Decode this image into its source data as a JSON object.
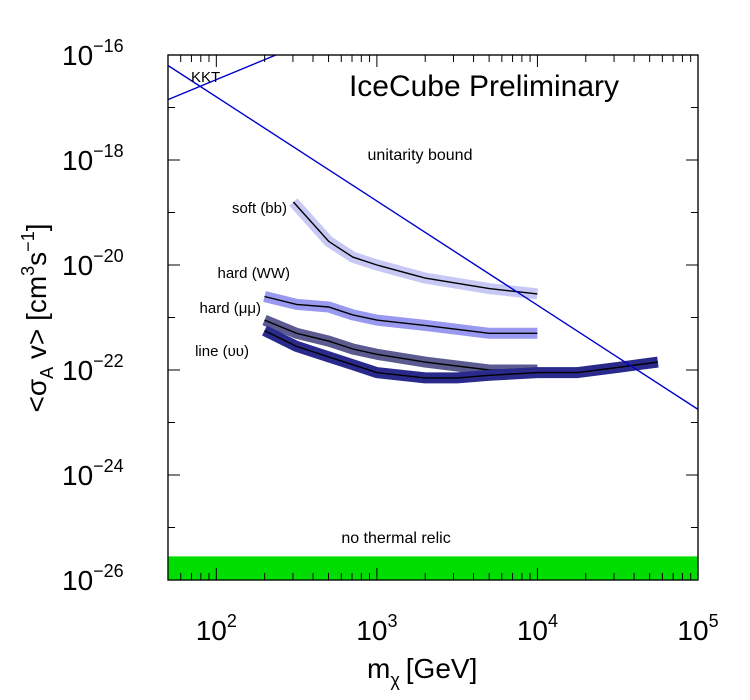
{
  "chart_data": {
    "type": "line",
    "title": "IceCube Preliminary",
    "xlabel_main": "m",
    "xlabel_sub": "χ",
    "xlabel_unit": "[GeV]",
    "ylabel_prefix": "<σ",
    "ylabel_sub": "A",
    "ylabel_mid": " v> [cm",
    "ylabel_sup1": "3",
    "ylabel_mid2": "s",
    "ylabel_sup2": "−1",
    "ylabel_end": "]",
    "x_log_range": [
      1.699,
      5
    ],
    "y_log_range": [
      -26,
      -16
    ],
    "x_ticks": [
      {
        "base": "10",
        "exp": "2",
        "value": 100
      },
      {
        "base": "10",
        "exp": "3",
        "value": 1000
      },
      {
        "base": "10",
        "exp": "4",
        "value": 10000
      },
      {
        "base": "10",
        "exp": "5",
        "value": 100000
      }
    ],
    "y_ticks": [
      {
        "base": "10",
        "exp": "−16",
        "value": -16
      },
      {
        "base": "10",
        "exp": "−18",
        "value": -18
      },
      {
        "base": "10",
        "exp": "−20",
        "value": -20
      },
      {
        "base": "10",
        "exp": "−22",
        "value": -22
      },
      {
        "base": "10",
        "exp": "−24",
        "value": -24
      },
      {
        "base": "10",
        "exp": "−26",
        "value": -26
      }
    ],
    "series": [
      {
        "name": "soft (bb)",
        "color": "#c8c8f5",
        "log_mass": [
          2.48,
          2.7,
          2.85,
          3.0,
          3.3,
          3.7,
          4.0
        ],
        "log_sigma": [
          -18.8,
          -19.55,
          -19.85,
          -20.0,
          -20.25,
          -20.45,
          -20.55
        ]
      },
      {
        "name": "hard (WW)",
        "color": "#9999f0",
        "log_mass": [
          2.3,
          2.5,
          2.7,
          2.85,
          3.0,
          3.3,
          3.7,
          4.0
        ],
        "log_sigma": [
          -20.6,
          -20.75,
          -20.8,
          -20.95,
          -21.05,
          -21.15,
          -21.3,
          -21.3
        ]
      },
      {
        "name": "hard (μμ)",
        "color": "#5b5b90",
        "log_mass": [
          2.3,
          2.5,
          2.7,
          2.85,
          3.0,
          3.3,
          3.7,
          4.0
        ],
        "log_sigma": [
          -21.05,
          -21.3,
          -21.45,
          -21.6,
          -21.7,
          -21.85,
          -22.0,
          -22.0
        ]
      },
      {
        "name": "line (υυ)",
        "color": "#2a2a8c",
        "log_mass": [
          2.3,
          2.5,
          2.7,
          2.85,
          3.0,
          3.3,
          3.5,
          3.7,
          4.0,
          4.25,
          4.5,
          4.75
        ],
        "log_sigma": [
          -21.25,
          -21.55,
          -21.75,
          -21.9,
          -22.05,
          -22.15,
          -22.15,
          -22.1,
          -22.05,
          -22.05,
          -21.95,
          -21.85
        ]
      }
    ],
    "reference_lines": [
      {
        "name": "KKT",
        "color": "#0000cc",
        "points": [
          [
            1.699,
            -16.85
          ],
          [
            2.45,
            -15.9
          ]
        ]
      },
      {
        "name": "unitarity bound",
        "color": "#0000cc",
        "points": [
          [
            1.699,
            -16.2
          ],
          [
            5.0,
            -22.75
          ]
        ]
      }
    ],
    "band": {
      "name": "no thermal relic",
      "color": "#00dd00",
      "log_sigma_range": [
        -26.0,
        -25.55
      ]
    }
  }
}
